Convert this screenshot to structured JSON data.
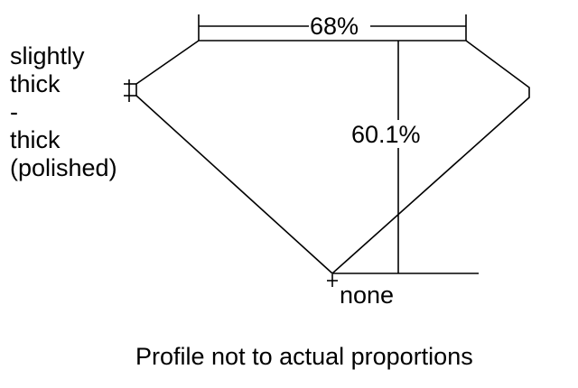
{
  "diagram": {
    "table_percent": "68%",
    "depth_percent": "60.1%",
    "culet": "none",
    "girdle_lines": [
      "slightly",
      "thick",
      "-",
      "thick",
      "(polished)"
    ],
    "caption": "Profile not to actual proportions"
  }
}
